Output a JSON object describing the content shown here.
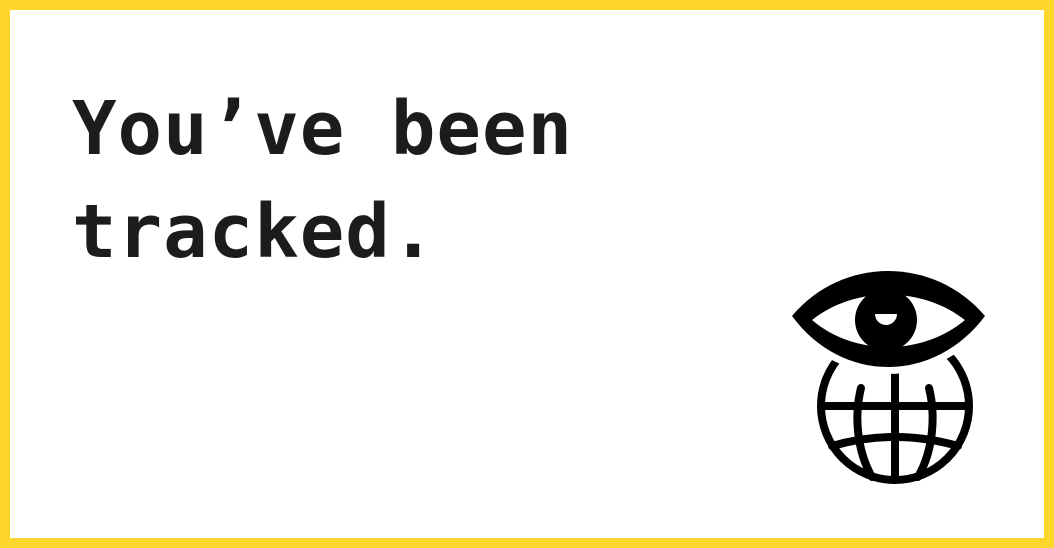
{
  "headline": {
    "line1": "You’ve been",
    "line2": "tracked."
  },
  "logo": {
    "icon": "eye-over-globe-icon"
  },
  "colors": {
    "border": "#FDD62B",
    "background": "#FFFFFF",
    "ink": "#1C1C1C",
    "icon": "#000000"
  }
}
